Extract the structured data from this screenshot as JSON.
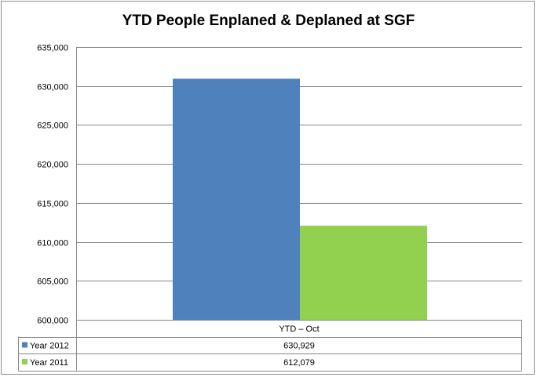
{
  "chart_data": {
    "type": "bar",
    "title": "YTD People Enplaned & Deplaned at SGF",
    "categories": [
      "YTD – Oct"
    ],
    "series": [
      {
        "name": "Year 2012",
        "values": [
          630929
        ],
        "value_label": "630,929",
        "color": "#4f81bd"
      },
      {
        "name": "Year 2011",
        "values": [
          612079
        ],
        "value_label": "612,079",
        "color": "#92d050"
      }
    ],
    "ylim": [
      600000,
      635000
    ],
    "yticks": [
      "600,000",
      "605,000",
      "610,000",
      "615,000",
      "620,000",
      "625,000",
      "630,000",
      "635,000"
    ],
    "ytick_values": [
      600000,
      605000,
      610000,
      615000,
      620000,
      625000,
      630000,
      635000
    ],
    "grid": true,
    "legend": "data-table"
  }
}
